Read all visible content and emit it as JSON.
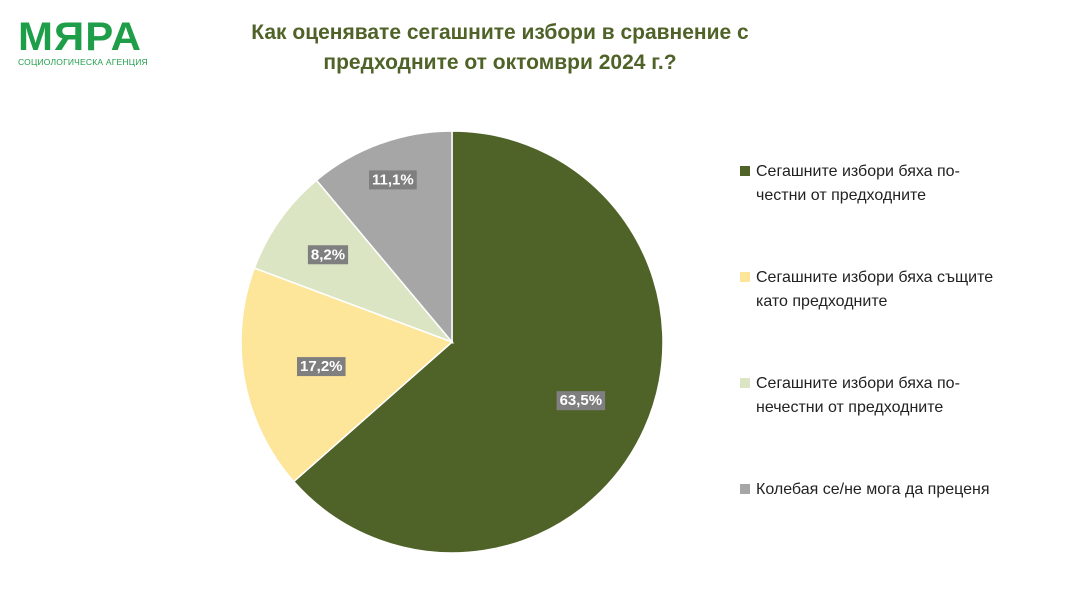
{
  "logo": {
    "name": "МЯРА",
    "subtitle": "СОЦИОЛОГИЧЕСКА АГЕНЦИЯ"
  },
  "chart_data": {
    "type": "pie",
    "title": "Как оценявате сегашните избори в сравнение с предходните от октомври 2024 г.?",
    "slices": [
      {
        "label": "Сегашните избори бяха по-честни от предходните",
        "value": 63.5,
        "value_label": "63,5%",
        "color": "#4f6228"
      },
      {
        "label": "Сегашните избори бяха същите като предходните",
        "value": 17.2,
        "value_label": "17,2%",
        "color": "#fde59a"
      },
      {
        "label": "Сегашните избори бяха по-нечестни от предходните",
        "value": 8.2,
        "value_label": "8,2%",
        "color": "#dbe5c3"
      },
      {
        "label": "Колебая се/не мога да преценя",
        "value": 11.1,
        "value_label": "11,1%",
        "color": "#a6a6a6"
      }
    ],
    "label_box_color": "#7f7f7f",
    "legend_position": "right"
  }
}
